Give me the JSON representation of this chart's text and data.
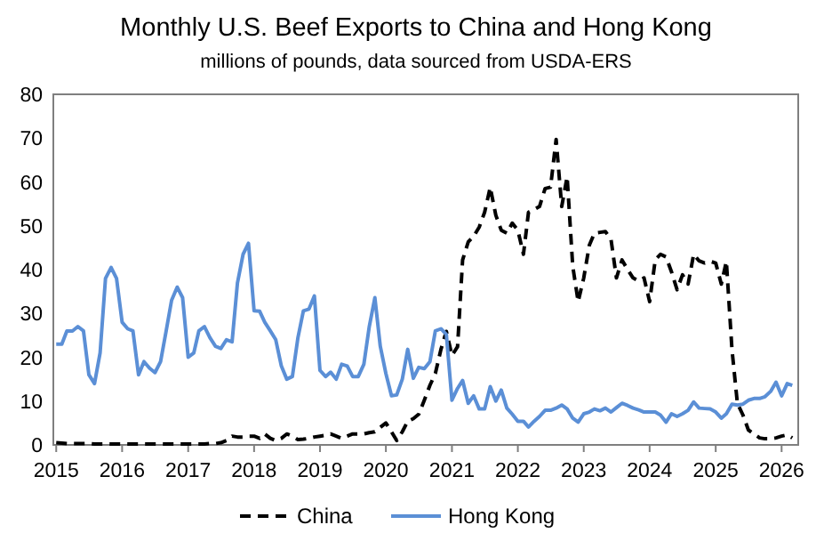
{
  "chart_data": {
    "type": "line",
    "title": "Monthly U.S. Beef Exports to China and Hong Kong",
    "subtitle": "millions of pounds, data sourced from USDA-ERS",
    "x": [
      "2015-01",
      "2015-02",
      "2015-03",
      "2015-04",
      "2015-05",
      "2015-06",
      "2015-07",
      "2015-08",
      "2015-09",
      "2015-10",
      "2015-11",
      "2015-12",
      "2016-01",
      "2016-02",
      "2016-03",
      "2016-04",
      "2016-05",
      "2016-06",
      "2016-07",
      "2016-08",
      "2016-09",
      "2016-10",
      "2016-11",
      "2016-12",
      "2017-01",
      "2017-02",
      "2017-03",
      "2017-04",
      "2017-05",
      "2017-06",
      "2017-07",
      "2017-08",
      "2017-09",
      "2017-10",
      "2017-11",
      "2017-12",
      "2018-01",
      "2018-02",
      "2018-03",
      "2018-04",
      "2018-05",
      "2018-06",
      "2018-07",
      "2018-08",
      "2018-09",
      "2018-10",
      "2018-11",
      "2018-12",
      "2019-01",
      "2019-02",
      "2019-03",
      "2019-04",
      "2019-05",
      "2019-06",
      "2019-07",
      "2019-08",
      "2019-09",
      "2019-10",
      "2019-11",
      "2019-12",
      "2020-01",
      "2020-02",
      "2020-03",
      "2020-04",
      "2020-05",
      "2020-06",
      "2020-07",
      "2020-08",
      "2020-09",
      "2020-10",
      "2020-11",
      "2020-12",
      "2021-01",
      "2021-02",
      "2021-03",
      "2021-04",
      "2021-05",
      "2021-06",
      "2021-07",
      "2021-08",
      "2021-09",
      "2021-10",
      "2021-11",
      "2021-12",
      "2022-01",
      "2022-02",
      "2022-03",
      "2022-04",
      "2022-05",
      "2022-06",
      "2022-07",
      "2022-08",
      "2022-09",
      "2022-10",
      "2022-11",
      "2022-12",
      "2023-01",
      "2023-02",
      "2023-03",
      "2023-04",
      "2023-05",
      "2023-06",
      "2023-07",
      "2023-08",
      "2023-09",
      "2023-10",
      "2023-11",
      "2023-12",
      "2024-01",
      "2024-02",
      "2024-03",
      "2024-04",
      "2024-05",
      "2024-06",
      "2024-07",
      "2024-08",
      "2024-09",
      "2024-10",
      "2024-11",
      "2024-12",
      "2025-01",
      "2025-02",
      "2025-03",
      "2025-04",
      "2025-05",
      "2025-06",
      "2025-07",
      "2025-08",
      "2025-09",
      "2025-10",
      "2025-11",
      "2025-12",
      "2026-01",
      "2026-02",
      "2026-03"
    ],
    "series": [
      {
        "name": "China",
        "color": "#000000",
        "line_style": "dashed",
        "values": [
          0.5,
          0.4,
          0.3,
          0.3,
          0.3,
          0.3,
          0.3,
          0.2,
          0.2,
          0.2,
          0.2,
          0.2,
          0.2,
          0.2,
          0.2,
          0.2,
          0.2,
          0.2,
          0.2,
          0.2,
          0.2,
          0.2,
          0.2,
          0.2,
          0.2,
          0.2,
          0.2,
          0.2,
          0.3,
          0.3,
          0.5,
          1,
          2,
          1.8,
          1.8,
          2,
          2,
          1.5,
          2.5,
          1.5,
          1,
          1.5,
          2.5,
          2,
          1.2,
          1.3,
          1.5,
          1.8,
          2,
          2.2,
          2.5,
          2,
          1.5,
          2,
          2.5,
          2.5,
          2.5,
          2.8,
          3,
          4,
          5,
          3,
          1,
          3,
          5.4,
          6,
          7,
          10.2,
          13.6,
          16.3,
          21.8,
          25.9,
          20.4,
          22.4,
          42.2,
          46.3,
          47.6,
          49.7,
          53.1,
          58.8,
          52.4,
          49,
          48.3,
          50.6,
          49,
          43.5,
          53.1,
          53.7,
          54.4,
          58.5,
          58.8,
          69.7,
          54.4,
          61.2,
          40.8,
          32.7,
          38.1,
          45.6,
          48.3,
          48.5,
          48.7,
          46.9,
          38.1,
          42.2,
          40,
          38.1,
          37.4,
          38.1,
          32.7,
          42.2,
          43.5,
          42.9,
          39.5,
          35.4,
          38.8,
          36.7,
          43.5,
          42,
          41.5,
          41.9,
          41.5,
          36.7,
          41.9,
          21.8,
          9.5,
          6.8,
          3.4,
          2.5,
          1.6,
          1.4,
          1.4,
          1.6,
          2,
          2.3,
          1.6
        ]
      },
      {
        "name": "Hong Kong",
        "color": "#5b8fd6",
        "line_style": "solid",
        "values": [
          23,
          23,
          26,
          26,
          27,
          26,
          16,
          14,
          21,
          38,
          40.5,
          38,
          28,
          26.5,
          26,
          16,
          19,
          17.5,
          16.5,
          19,
          26,
          33,
          36,
          33.6,
          20,
          21,
          26,
          27,
          24.5,
          22.5,
          22,
          24,
          23.5,
          37,
          43.5,
          46,
          30.6,
          30.5,
          28,
          26,
          24,
          18,
          15,
          15.6,
          24.5,
          30.6,
          31,
          34,
          17,
          15.6,
          16.6,
          15,
          18.4,
          18,
          15.6,
          15.6,
          18.4,
          27,
          33.6,
          22.5,
          16.3,
          11.2,
          11.4,
          15,
          21.8,
          15.2,
          17.7,
          17.4,
          19,
          26,
          26.5,
          25.2,
          10.2,
          12.9,
          14.7,
          9.5,
          11.2,
          8.2,
          8.2,
          13.3,
          10,
          12.5,
          8.4,
          7,
          5.4,
          5.4,
          4.1,
          5.4,
          6.5,
          7.9,
          7.9,
          8.4,
          9.1,
          8.2,
          6.1,
          5.2,
          7.1,
          7.5,
          8.2,
          7.8,
          8.4,
          7.5,
          8.5,
          9.5,
          9,
          8.4,
          8,
          7.5,
          7.5,
          7.5,
          6.8,
          5.2,
          7.1,
          6.5,
          7.1,
          7.9,
          9.8,
          8.4,
          8.3,
          8.2,
          7.5,
          6.1,
          7.1,
          9.3,
          9.1,
          9.3,
          10.2,
          10.6,
          10.6,
          11,
          12.2,
          14.3,
          11.2,
          14,
          13.6
        ]
      }
    ],
    "xlim": [
      "2014-12-16",
      "2026-04-03"
    ],
    "xticks": [
      "2015",
      "2016",
      "2017",
      "2018",
      "2019",
      "2020",
      "2021",
      "2022",
      "2023",
      "2024",
      "2025",
      "2026"
    ],
    "ylim": [
      0,
      80
    ],
    "yticks": [
      0,
      10,
      20,
      30,
      40,
      50,
      60,
      70,
      80
    ],
    "grid": false,
    "legend": "bottom"
  }
}
